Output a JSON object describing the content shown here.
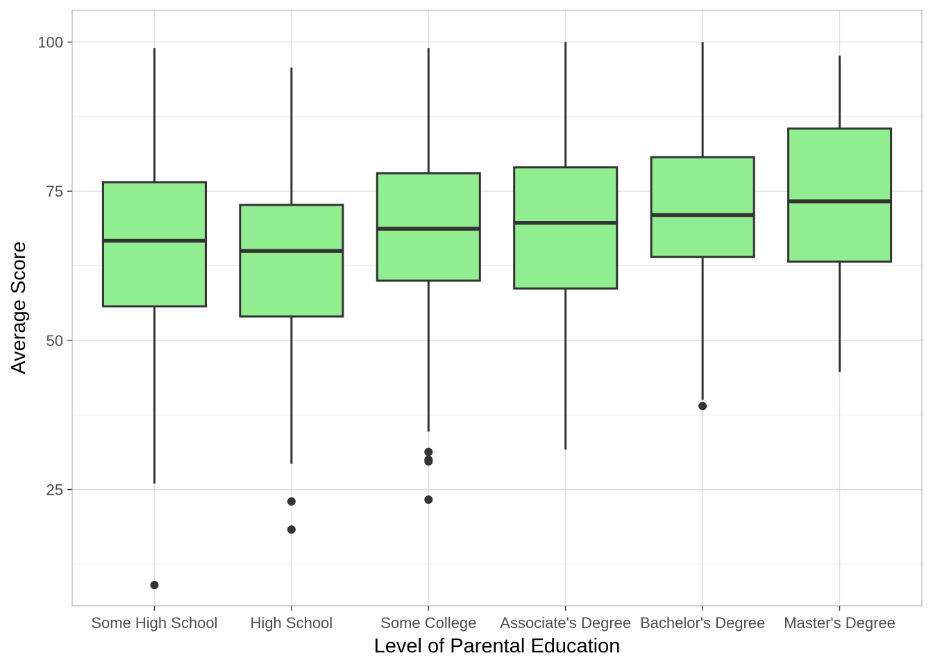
{
  "chart_data": {
    "type": "boxplot",
    "title": "",
    "xlabel": "Level of Parental Education",
    "ylabel": "Average Score",
    "ylim": [
      5.5,
      105.3
    ],
    "yticks": [
      25,
      50,
      75,
      100
    ],
    "ytick_labels": [
      "25",
      "50",
      "75",
      "100"
    ],
    "y_minor_gridlines": [
      12.5,
      37.5,
      62.5,
      87.5
    ],
    "grid": true,
    "colors": {
      "box_fill": "#90EE90",
      "box_stroke": "#333333",
      "grid": "#dedede",
      "grid_minor": "#ebebeb",
      "panel_border": "#b3b3b3"
    },
    "categories": [
      "Some High School",
      "High School",
      "Some College",
      "Associate's Degree",
      "Bachelor's Degree",
      "Master's Degree"
    ],
    "boxes": [
      {
        "category": "Some High School",
        "whisker_low": 26.0,
        "q1": 55.7,
        "median": 66.7,
        "q3": 76.5,
        "whisker_high": 99.0,
        "outliers": [
          9.0
        ]
      },
      {
        "category": "High School",
        "whisker_low": 29.3,
        "q1": 54.0,
        "median": 65.0,
        "q3": 72.7,
        "whisker_high": 95.7,
        "outliers": [
          23.0,
          18.3
        ]
      },
      {
        "category": "Some College",
        "whisker_low": 34.7,
        "q1": 60.0,
        "median": 68.7,
        "q3": 78.0,
        "whisker_high": 99.0,
        "outliers": [
          31.3,
          30.0,
          29.7,
          23.3
        ]
      },
      {
        "category": "Associate's Degree",
        "whisker_low": 31.7,
        "q1": 58.7,
        "median": 69.7,
        "q3": 79.0,
        "whisker_high": 100.0,
        "outliers": []
      },
      {
        "category": "Bachelor's Degree",
        "whisker_low": 40.0,
        "q1": 64.0,
        "median": 71.0,
        "q3": 80.7,
        "whisker_high": 100.0,
        "outliers": [
          39.0
        ]
      },
      {
        "category": "Master's Degree",
        "whisker_low": 44.7,
        "q1": 63.2,
        "median": 73.3,
        "q3": 85.5,
        "whisker_high": 97.7,
        "outliers": []
      }
    ]
  }
}
